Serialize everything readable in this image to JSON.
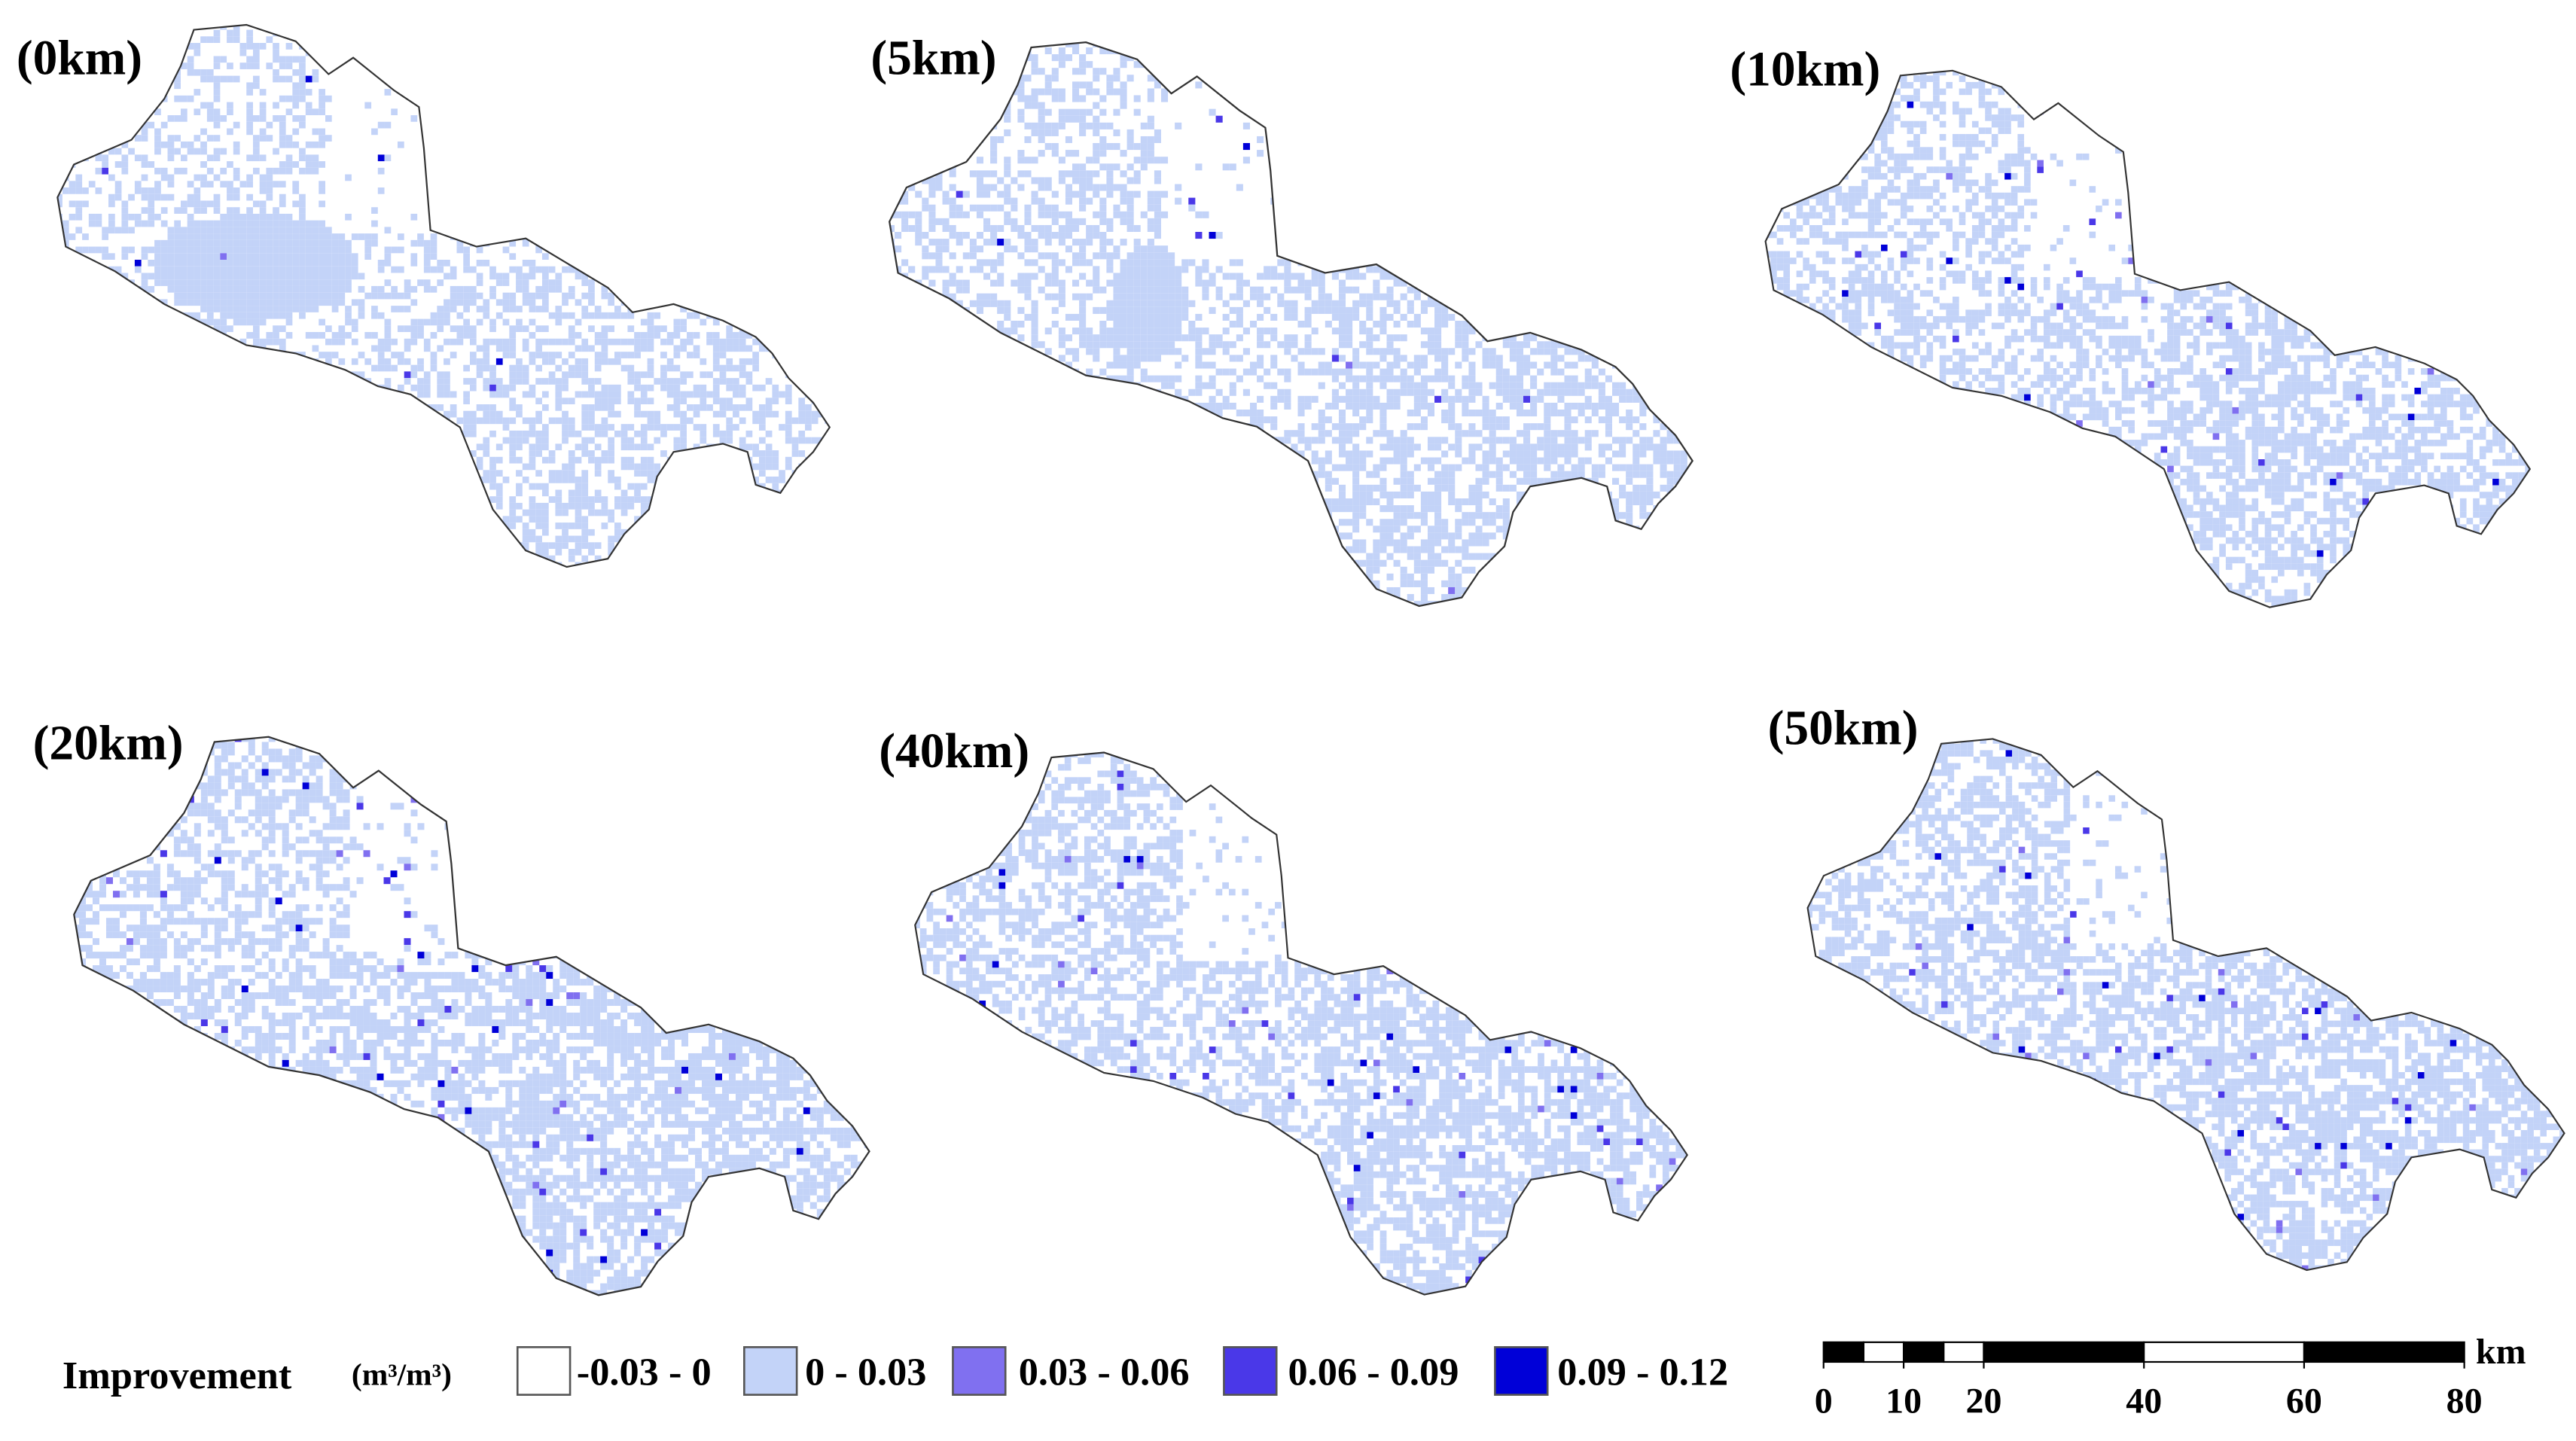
{
  "panels": [
    {
      "label": "(0km)"
    },
    {
      "label": "(5km)"
    },
    {
      "label": "(10km)"
    },
    {
      "label": "(20km)"
    },
    {
      "label": "(40km)"
    },
    {
      "label": "(50km)"
    }
  ],
  "legend": {
    "title": "Improvement",
    "unit": "(m³/m³)",
    "classes": [
      {
        "label": "-0.03 - 0",
        "color": "#ffffff"
      },
      {
        "label": "0 - 0.03",
        "color": "#c3d3f8"
      },
      {
        "label": "0.03 - 0.06",
        "color": "#8070f0"
      },
      {
        "label": "0.06 - 0.09",
        "color": "#4a38e8"
      },
      {
        "label": "0.09 - 0.12",
        "color": "#0000d8"
      }
    ]
  },
  "scale_bar": {
    "ticks": [
      0,
      10,
      20,
      40,
      60,
      80
    ],
    "unit": "km"
  }
}
